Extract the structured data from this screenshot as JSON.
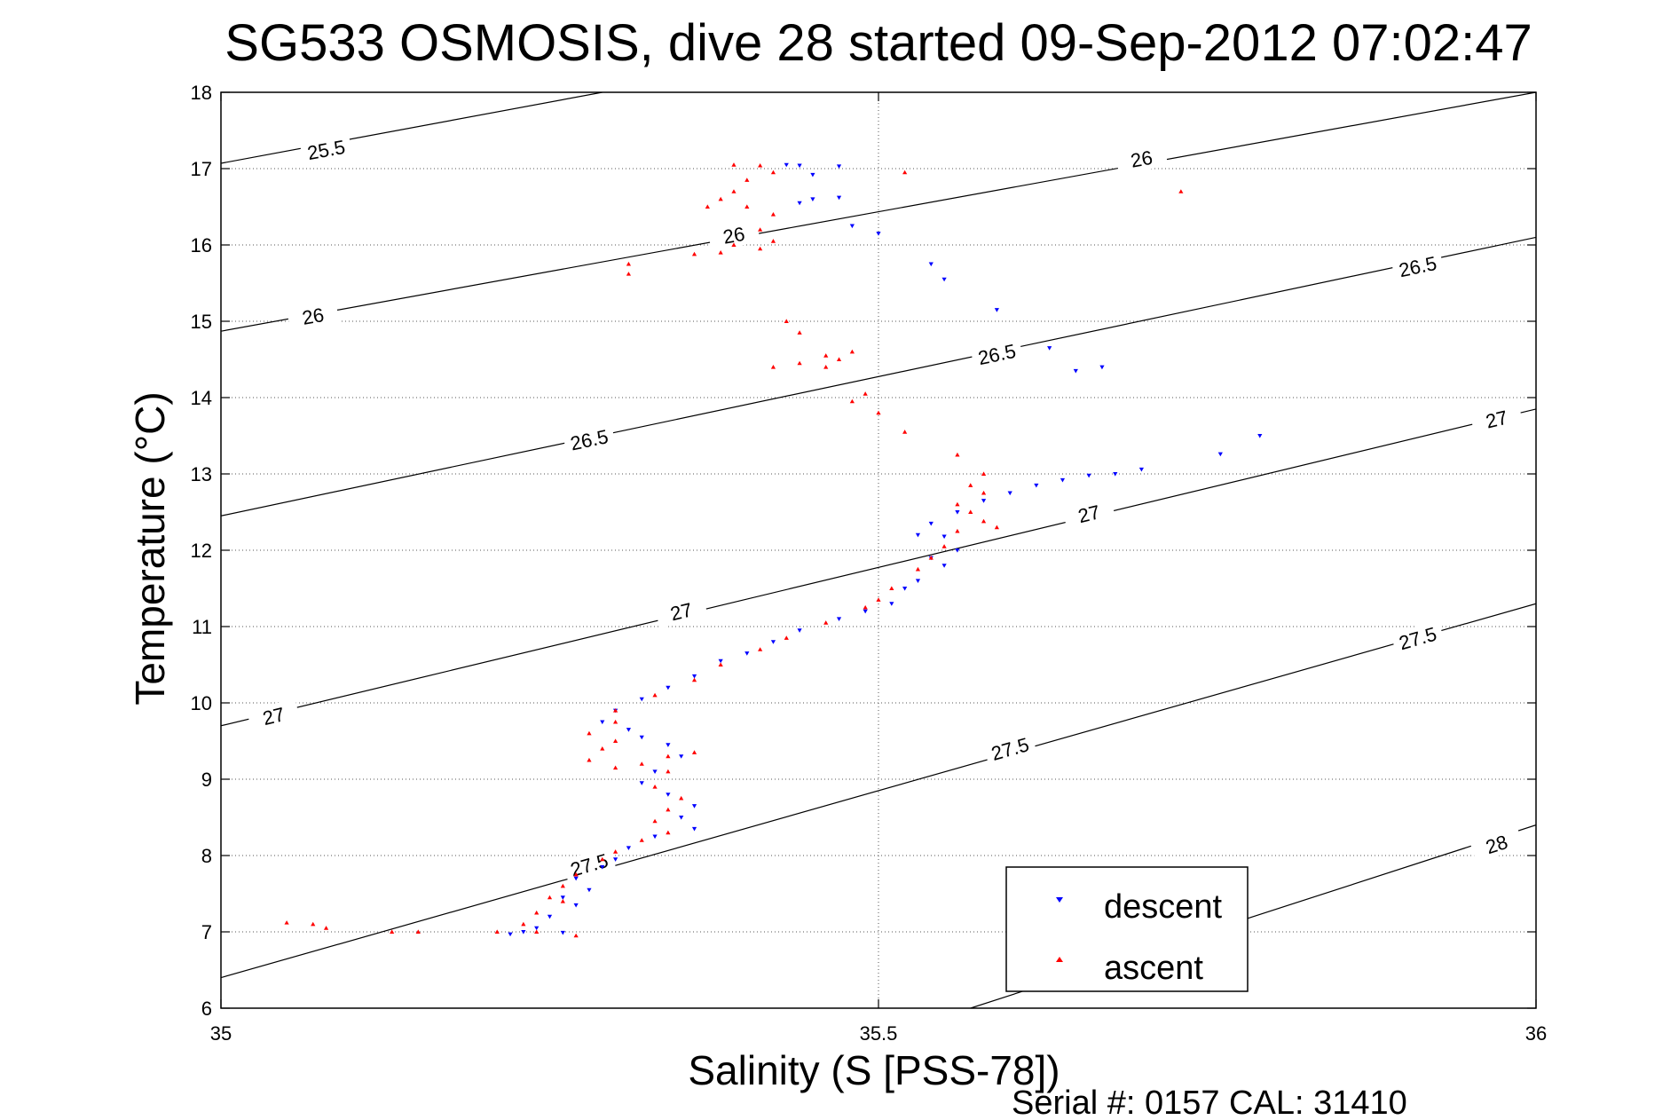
{
  "chart_data": {
    "type": "scatter",
    "title": "SG533 OSMOSIS, dive 28 started 09-Sep-2012 07:02:47",
    "xlabel": "Salinity (S [PSS-78])",
    "ylabel": "Temperature (°C)",
    "xlim": [
      35,
      36
    ],
    "ylim": [
      6,
      18
    ],
    "x_ticks": [
      35,
      35.5,
      36
    ],
    "y_ticks": [
      6,
      7,
      8,
      9,
      10,
      11,
      12,
      13,
      14,
      15,
      16,
      17,
      18
    ],
    "grid": true,
    "legend_position": "bottom-right",
    "footer": "Serial #: 0157  CAL: 31410",
    "colors": {
      "descent": "#0000ff",
      "ascent": "#ff0000",
      "contour": "#000000"
    },
    "density_contours": [
      {
        "label": "25.5",
        "points": [
          [
            35.0,
            17.07
          ],
          [
            35.29,
            18.0
          ]
        ],
        "label_at": [
          [
            35.08,
            17.25
          ]
        ]
      },
      {
        "label": "26",
        "points": [
          [
            35.0,
            14.87
          ],
          [
            36.0,
            18.0
          ]
        ],
        "label_at": [
          [
            35.07,
            15.07
          ],
          [
            35.39,
            16.13
          ],
          [
            35.7,
            17.13
          ]
        ]
      },
      {
        "label": "26.5",
        "points": [
          [
            35.0,
            12.45
          ],
          [
            36.0,
            16.1
          ]
        ],
        "label_at": [
          [
            35.28,
            13.45
          ],
          [
            35.59,
            14.57
          ],
          [
            35.91,
            15.72
          ]
        ]
      },
      {
        "label": "27",
        "points": [
          [
            35.0,
            9.7
          ],
          [
            36.0,
            13.85
          ]
        ],
        "label_at": [
          [
            35.04,
            9.83
          ],
          [
            35.35,
            11.2
          ],
          [
            35.66,
            12.48
          ],
          [
            35.97,
            13.72
          ]
        ]
      },
      {
        "label": "27.5",
        "points": [
          [
            35.0,
            6.4
          ],
          [
            36.0,
            11.3
          ]
        ],
        "label_at": [
          [
            35.28,
            7.88
          ],
          [
            35.6,
            9.4
          ],
          [
            35.91,
            10.85
          ]
        ]
      },
      {
        "label": "28",
        "points": [
          [
            35.57,
            6.0
          ],
          [
            36.0,
            8.4
          ]
        ],
        "label_at": [
          [
            35.97,
            8.15
          ]
        ]
      }
    ],
    "series": [
      {
        "name": "descent",
        "marker": "triangle-down",
        "points": [
          [
            35.43,
            17.05
          ],
          [
            35.44,
            17.04
          ],
          [
            35.47,
            17.03
          ],
          [
            35.45,
            16.92
          ],
          [
            35.44,
            16.55
          ],
          [
            35.45,
            16.6
          ],
          [
            35.47,
            16.62
          ],
          [
            35.48,
            16.25
          ],
          [
            35.5,
            16.15
          ],
          [
            35.54,
            15.75
          ],
          [
            35.55,
            15.55
          ],
          [
            35.59,
            15.15
          ],
          [
            35.63,
            14.65
          ],
          [
            35.65,
            14.35
          ],
          [
            35.67,
            14.4
          ],
          [
            35.76,
            13.26
          ],
          [
            35.79,
            13.5
          ],
          [
            35.7,
            13.06
          ],
          [
            35.68,
            13.0
          ],
          [
            35.66,
            12.98
          ],
          [
            35.64,
            12.92
          ],
          [
            35.62,
            12.85
          ],
          [
            35.6,
            12.75
          ],
          [
            35.58,
            12.65
          ],
          [
            35.56,
            12.5
          ],
          [
            35.54,
            12.35
          ],
          [
            35.53,
            12.2
          ],
          [
            35.55,
            12.18
          ],
          [
            35.56,
            12.0
          ],
          [
            35.54,
            11.9
          ],
          [
            35.55,
            11.8
          ],
          [
            35.53,
            11.6
          ],
          [
            35.52,
            11.5
          ],
          [
            35.51,
            11.3
          ],
          [
            35.49,
            11.2
          ],
          [
            35.47,
            11.1
          ],
          [
            35.44,
            10.95
          ],
          [
            35.42,
            10.8
          ],
          [
            35.4,
            10.65
          ],
          [
            35.38,
            10.55
          ],
          [
            35.36,
            10.35
          ],
          [
            35.34,
            10.2
          ],
          [
            35.32,
            10.05
          ],
          [
            35.3,
            9.9
          ],
          [
            35.29,
            9.75
          ],
          [
            35.31,
            9.65
          ],
          [
            35.32,
            9.55
          ],
          [
            35.34,
            9.45
          ],
          [
            35.35,
            9.3
          ],
          [
            35.33,
            9.1
          ],
          [
            35.32,
            8.95
          ],
          [
            35.34,
            8.8
          ],
          [
            35.36,
            8.65
          ],
          [
            35.35,
            8.5
          ],
          [
            35.36,
            8.35
          ],
          [
            35.33,
            8.25
          ],
          [
            35.31,
            8.1
          ],
          [
            35.3,
            7.95
          ],
          [
            35.29,
            7.85
          ],
          [
            35.27,
            7.7
          ],
          [
            35.28,
            7.55
          ],
          [
            35.26,
            7.45
          ],
          [
            35.27,
            7.35
          ],
          [
            35.25,
            7.2
          ],
          [
            35.24,
            7.05
          ],
          [
            35.23,
            7.0
          ],
          [
            35.22,
            6.97
          ],
          [
            35.26,
            6.99
          ]
        ]
      },
      {
        "name": "ascent",
        "marker": "triangle-up",
        "points": [
          [
            35.39,
            17.05
          ],
          [
            35.41,
            17.04
          ],
          [
            35.42,
            16.95
          ],
          [
            35.4,
            16.85
          ],
          [
            35.39,
            16.7
          ],
          [
            35.38,
            16.6
          ],
          [
            35.37,
            16.5
          ],
          [
            35.4,
            16.5
          ],
          [
            35.41,
            16.2
          ],
          [
            35.42,
            16.05
          ],
          [
            35.41,
            15.95
          ],
          [
            35.39,
            16.0
          ],
          [
            35.38,
            15.9
          ],
          [
            35.36,
            15.88
          ],
          [
            35.42,
            16.4
          ],
          [
            35.31,
            15.75
          ],
          [
            35.31,
            15.62
          ],
          [
            35.52,
            16.95
          ],
          [
            35.73,
            16.7
          ],
          [
            35.43,
            15.0
          ],
          [
            35.44,
            14.85
          ],
          [
            35.42,
            14.4
          ],
          [
            35.44,
            14.45
          ],
          [
            35.46,
            14.55
          ],
          [
            35.47,
            14.5
          ],
          [
            35.48,
            14.6
          ],
          [
            35.46,
            14.4
          ],
          [
            35.49,
            14.05
          ],
          [
            35.48,
            13.95
          ],
          [
            35.5,
            13.8
          ],
          [
            35.52,
            13.55
          ],
          [
            35.56,
            13.25
          ],
          [
            35.58,
            13.0
          ],
          [
            35.57,
            12.85
          ],
          [
            35.58,
            12.75
          ],
          [
            35.56,
            12.6
          ],
          [
            35.57,
            12.5
          ],
          [
            35.58,
            12.38
          ],
          [
            35.59,
            12.3
          ],
          [
            35.56,
            12.25
          ],
          [
            35.55,
            12.05
          ],
          [
            35.54,
            11.9
          ],
          [
            35.53,
            11.75
          ],
          [
            35.51,
            11.5
          ],
          [
            35.5,
            11.35
          ],
          [
            35.49,
            11.25
          ],
          [
            35.46,
            11.05
          ],
          [
            35.43,
            10.85
          ],
          [
            35.41,
            10.7
          ],
          [
            35.38,
            10.5
          ],
          [
            35.36,
            10.3
          ],
          [
            35.33,
            10.1
          ],
          [
            35.3,
            9.9
          ],
          [
            35.3,
            9.75
          ],
          [
            35.28,
            9.6
          ],
          [
            35.3,
            9.5
          ],
          [
            35.29,
            9.4
          ],
          [
            35.28,
            9.25
          ],
          [
            35.3,
            9.15
          ],
          [
            35.32,
            9.2
          ],
          [
            35.34,
            9.3
          ],
          [
            35.36,
            9.35
          ],
          [
            35.34,
            9.1
          ],
          [
            35.33,
            8.9
          ],
          [
            35.35,
            8.75
          ],
          [
            35.34,
            8.6
          ],
          [
            35.33,
            8.45
          ],
          [
            35.34,
            8.3
          ],
          [
            35.32,
            8.2
          ],
          [
            35.3,
            8.05
          ],
          [
            35.29,
            7.95
          ],
          [
            35.27,
            7.75
          ],
          [
            35.26,
            7.6
          ],
          [
            35.25,
            7.45
          ],
          [
            35.26,
            7.4
          ],
          [
            35.24,
            7.25
          ],
          [
            35.23,
            7.1
          ],
          [
            35.24,
            7.0
          ],
          [
            35.27,
            6.95
          ],
          [
            35.21,
            7.0
          ],
          [
            35.15,
            7.0
          ],
          [
            35.13,
            7.0
          ],
          [
            35.08,
            7.05
          ],
          [
            35.05,
            7.12
          ],
          [
            35.07,
            7.1
          ]
        ]
      }
    ]
  }
}
